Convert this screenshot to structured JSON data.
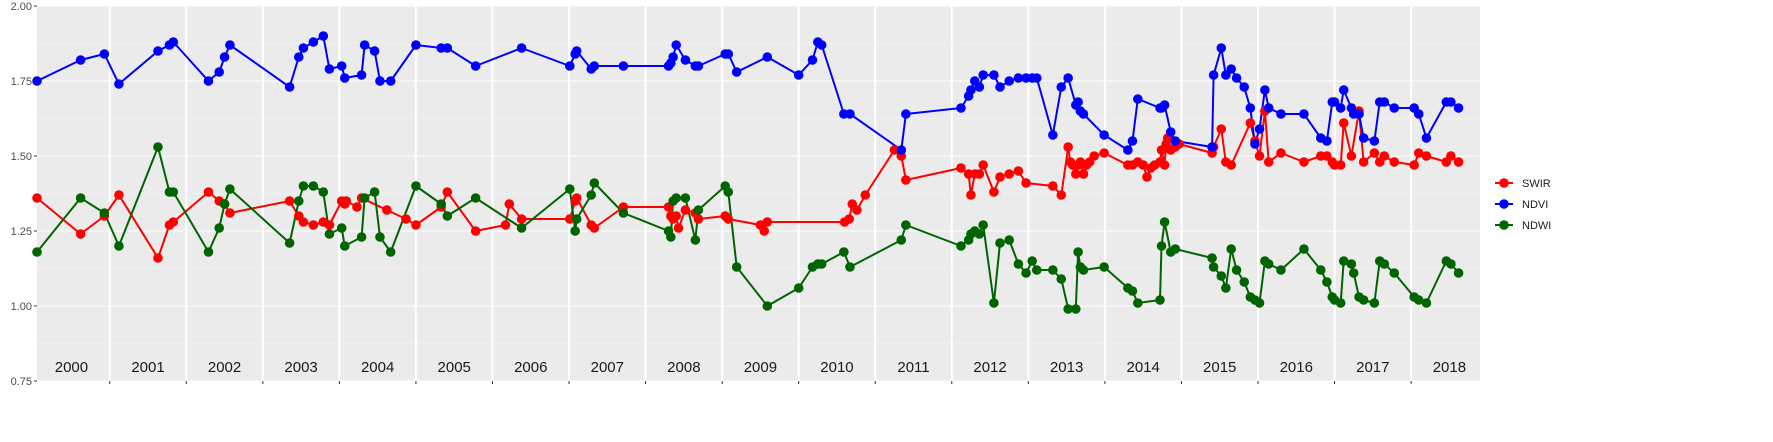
{
  "chart_data": {
    "type": "line",
    "title": "",
    "xlabel": "",
    "ylabel": "",
    "xlim": [
      2000.05,
      2018.9
    ],
    "ylim": [
      0.75,
      2.0
    ],
    "y_ticks": [
      "0.75",
      "1.00",
      "1.25",
      "1.50",
      "1.75",
      "2.00"
    ],
    "grid": true,
    "background": "#ebebeb",
    "legend_position": "right",
    "year_labels": [
      {
        "x": 2000.5,
        "label": "2000"
      },
      {
        "x": 2001.5,
        "label": "2001"
      },
      {
        "x": 2002.5,
        "label": "2002"
      },
      {
        "x": 2003.5,
        "label": "2003"
      },
      {
        "x": 2004.5,
        "label": "2004"
      },
      {
        "x": 2005.5,
        "label": "2005"
      },
      {
        "x": 2006.5,
        "label": "2006"
      },
      {
        "x": 2007.5,
        "label": "2007"
      },
      {
        "x": 2008.5,
        "label": "2008"
      },
      {
        "x": 2009.5,
        "label": "2009"
      },
      {
        "x": 2010.5,
        "label": "2010"
      },
      {
        "x": 2011.5,
        "label": "2011"
      },
      {
        "x": 2012.5,
        "label": "2012"
      },
      {
        "x": 2013.5,
        "label": "2013"
      },
      {
        "x": 2014.5,
        "label": "2014"
      },
      {
        "x": 2015.5,
        "label": "2015"
      },
      {
        "x": 2016.5,
        "label": "2016"
      },
      {
        "x": 2017.5,
        "label": "2017"
      },
      {
        "x": 2018.5,
        "label": "2018"
      }
    ],
    "series": [
      {
        "name": "SWIR",
        "color": "#ff0000",
        "x": [
          2000.05,
          2000.62,
          2000.93,
          2001.12,
          2001.63,
          2001.78,
          2001.83,
          2002.29,
          2002.43,
          2002.5,
          2002.57,
          2003.35,
          2003.47,
          2003.53,
          2003.66,
          2003.79,
          2003.87,
          2004.03,
          2004.07,
          2004.09,
          2004.23,
          2004.29,
          2004.62,
          2004.87,
          2005.0,
          2005.33,
          2005.41,
          2005.78,
          2006.17,
          2006.22,
          2006.38,
          2007.01,
          2007.08,
          2007.1,
          2007.29,
          2007.33,
          2007.71,
          2008.3,
          2008.33,
          2008.36,
          2008.4,
          2008.43,
          2008.52,
          2008.65,
          2008.69,
          2009.04,
          2009.08,
          2009.5,
          2009.55,
          2009.59,
          2010.6,
          2010.66,
          2010.7,
          2010.76,
          2010.87,
          2011.25,
          2011.34,
          2011.4,
          2012.12,
          2012.22,
          2012.25,
          2012.3,
          2012.36,
          2012.41,
          2012.55,
          2012.63,
          2012.75,
          2012.87,
          2012.97,
          2013.32,
          2013.43,
          2013.52,
          2013.55,
          2013.58,
          2013.62,
          2013.65,
          2013.68,
          2013.72,
          2013.76,
          2013.8,
          2013.86,
          2013.99,
          2014.3,
          2014.36,
          2014.43,
          2014.5,
          2014.55,
          2014.6,
          2014.65,
          2014.72,
          2014.74,
          2014.78,
          2014.8,
          2014.82,
          2014.86,
          2014.92,
          2014.97,
          2015.4,
          2015.42,
          2015.52,
          2015.58,
          2015.65,
          2015.9,
          2015.96,
          2016.02,
          2016.09,
          2016.14,
          2016.3,
          2016.6,
          2016.82,
          2016.9,
          2016.97,
          2017.0,
          2017.08,
          2017.12,
          2017.22,
          2017.32,
          2017.38,
          2017.52,
          2017.59,
          2017.65,
          2017.78,
          2018.04,
          2018.1,
          2018.2,
          2018.46,
          2018.52,
          2018.62
        ],
        "values": [
          1.36,
          1.24,
          1.3,
          1.37,
          1.16,
          1.27,
          1.28,
          1.38,
          1.35,
          1.34,
          1.31,
          1.35,
          1.3,
          1.28,
          1.27,
          1.28,
          1.27,
          1.35,
          1.34,
          1.35,
          1.33,
          1.36,
          1.32,
          1.29,
          1.27,
          1.33,
          1.38,
          1.25,
          1.27,
          1.34,
          1.29,
          1.29,
          1.35,
          1.36,
          1.27,
          1.26,
          1.33,
          1.33,
          1.3,
          1.29,
          1.3,
          1.26,
          1.32,
          1.31,
          1.29,
          1.3,
          1.29,
          1.27,
          1.25,
          1.28,
          1.28,
          1.29,
          1.34,
          1.32,
          1.37,
          1.52,
          1.5,
          1.42,
          1.46,
          1.44,
          1.37,
          1.44,
          1.44,
          1.47,
          1.38,
          1.43,
          1.44,
          1.45,
          1.41,
          1.4,
          1.37,
          1.53,
          1.48,
          1.47,
          1.44,
          1.47,
          1.48,
          1.44,
          1.47,
          1.48,
          1.5,
          1.51,
          1.47,
          1.47,
          1.48,
          1.47,
          1.43,
          1.46,
          1.47,
          1.48,
          1.52,
          1.47,
          1.54,
          1.56,
          1.52,
          1.53,
          1.54,
          1.51,
          1.53,
          1.59,
          1.48,
          1.47,
          1.61,
          1.55,
          1.5,
          1.65,
          1.48,
          1.51,
          1.48,
          1.5,
          1.5,
          1.48,
          1.47,
          1.47,
          1.61,
          1.5,
          1.65,
          1.48,
          1.51,
          1.48,
          1.5,
          1.48,
          1.47,
          1.51,
          1.5,
          1.48,
          1.5,
          1.48
        ]
      },
      {
        "name": "NDVI",
        "color": "#0000ff",
        "x": [
          2000.05,
          2000.62,
          2000.93,
          2001.12,
          2001.63,
          2001.78,
          2001.83,
          2002.29,
          2002.43,
          2002.5,
          2002.57,
          2003.35,
          2003.47,
          2003.53,
          2003.66,
          2003.79,
          2003.87,
          2004.03,
          2004.07,
          2004.29,
          2004.33,
          2004.46,
          2004.53,
          2004.67,
          2005.0,
          2005.33,
          2005.41,
          2005.78,
          2006.38,
          2007.01,
          2007.08,
          2007.1,
          2007.29,
          2007.33,
          2007.71,
          2008.3,
          2008.33,
          2008.36,
          2008.4,
          2008.52,
          2008.65,
          2008.69,
          2009.04,
          2009.08,
          2009.19,
          2009.59,
          2010.0,
          2010.18,
          2010.25,
          2010.3,
          2010.59,
          2010.67,
          2011.34,
          2011.4,
          2012.12,
          2012.22,
          2012.25,
          2012.3,
          2012.36,
          2012.41,
          2012.55,
          2012.63,
          2012.75,
          2012.87,
          2012.97,
          2013.05,
          2013.11,
          2013.32,
          2013.43,
          2013.52,
          2013.62,
          2013.65,
          2013.68,
          2013.72,
          2013.99,
          2014.3,
          2014.36,
          2014.43,
          2014.72,
          2014.74,
          2014.78,
          2014.86,
          2014.92,
          2015.4,
          2015.42,
          2015.52,
          2015.58,
          2015.65,
          2015.72,
          2015.82,
          2015.9,
          2015.96,
          2016.02,
          2016.09,
          2016.14,
          2016.3,
          2016.6,
          2016.82,
          2016.9,
          2016.97,
          2017.0,
          2017.08,
          2017.12,
          2017.22,
          2017.25,
          2017.32,
          2017.38,
          2017.52,
          2017.59,
          2017.65,
          2017.78,
          2018.04,
          2018.1,
          2018.2,
          2018.46,
          2018.52,
          2018.62
        ],
        "values": [
          1.75,
          1.82,
          1.84,
          1.74,
          1.85,
          1.87,
          1.88,
          1.75,
          1.78,
          1.83,
          1.87,
          1.73,
          1.83,
          1.86,
          1.88,
          1.9,
          1.79,
          1.8,
          1.76,
          1.77,
          1.87,
          1.85,
          1.75,
          1.75,
          1.87,
          1.86,
          1.86,
          1.8,
          1.86,
          1.8,
          1.84,
          1.85,
          1.79,
          1.8,
          1.8,
          1.8,
          1.81,
          1.83,
          1.87,
          1.82,
          1.8,
          1.8,
          1.84,
          1.84,
          1.78,
          1.83,
          1.77,
          1.82,
          1.88,
          1.87,
          1.64,
          1.64,
          1.52,
          1.64,
          1.66,
          1.7,
          1.72,
          1.75,
          1.73,
          1.77,
          1.77,
          1.73,
          1.75,
          1.76,
          1.76,
          1.76,
          1.76,
          1.57,
          1.73,
          1.76,
          1.67,
          1.68,
          1.65,
          1.64,
          1.57,
          1.52,
          1.55,
          1.69,
          1.66,
          1.66,
          1.67,
          1.58,
          1.55,
          1.53,
          1.77,
          1.86,
          1.77,
          1.79,
          1.76,
          1.73,
          1.66,
          1.54,
          1.59,
          1.72,
          1.66,
          1.64,
          1.64,
          1.56,
          1.55,
          1.68,
          1.68,
          1.66,
          1.72,
          1.66,
          1.64,
          1.64,
          1.56,
          1.55,
          1.68,
          1.68,
          1.66,
          1.66,
          1.64,
          1.56,
          1.68,
          1.68,
          1.66
        ]
      },
      {
        "name": "NDWI",
        "color": "#006400",
        "x": [
          2000.05,
          2000.62,
          2000.93,
          2001.12,
          2001.63,
          2001.78,
          2001.83,
          2002.29,
          2002.43,
          2002.5,
          2002.57,
          2003.35,
          2003.47,
          2003.53,
          2003.66,
          2003.79,
          2003.87,
          2004.03,
          2004.07,
          2004.29,
          2004.33,
          2004.46,
          2004.53,
          2004.67,
          2005.0,
          2005.33,
          2005.41,
          2005.78,
          2006.38,
          2007.01,
          2007.08,
          2007.1,
          2007.29,
          2007.33,
          2007.71,
          2008.3,
          2008.33,
          2008.36,
          2008.4,
          2008.52,
          2008.65,
          2008.69,
          2009.04,
          2009.08,
          2009.19,
          2009.59,
          2010.0,
          2010.18,
          2010.25,
          2010.3,
          2010.59,
          2010.67,
          2011.34,
          2011.4,
          2012.12,
          2012.22,
          2012.25,
          2012.3,
          2012.36,
          2012.41,
          2012.55,
          2012.63,
          2012.75,
          2012.87,
          2012.97,
          2013.05,
          2013.11,
          2013.32,
          2013.43,
          2013.52,
          2013.62,
          2013.65,
          2013.68,
          2013.72,
          2013.99,
          2014.3,
          2014.36,
          2014.43,
          2014.72,
          2014.74,
          2014.78,
          2014.86,
          2014.92,
          2015.4,
          2015.42,
          2015.52,
          2015.58,
          2015.65,
          2015.72,
          2015.82,
          2015.9,
          2015.96,
          2016.02,
          2016.09,
          2016.14,
          2016.3,
          2016.6,
          2016.82,
          2016.9,
          2016.97,
          2017.0,
          2017.08,
          2017.12,
          2017.22,
          2017.25,
          2017.32,
          2017.38,
          2017.52,
          2017.59,
          2017.65,
          2017.78,
          2018.04,
          2018.1,
          2018.2,
          2018.46,
          2018.52,
          2018.62
        ],
        "values": [
          1.18,
          1.36,
          1.31,
          1.2,
          1.53,
          1.38,
          1.38,
          1.18,
          1.26,
          1.34,
          1.39,
          1.21,
          1.35,
          1.4,
          1.4,
          1.38,
          1.24,
          1.26,
          1.2,
          1.23,
          1.36,
          1.38,
          1.23,
          1.18,
          1.4,
          1.34,
          1.3,
          1.36,
          1.26,
          1.39,
          1.25,
          1.29,
          1.37,
          1.41,
          1.31,
          1.25,
          1.23,
          1.35,
          1.36,
          1.36,
          1.22,
          1.32,
          1.4,
          1.38,
          1.13,
          1.0,
          1.06,
          1.13,
          1.14,
          1.14,
          1.18,
          1.13,
          1.22,
          1.27,
          1.2,
          1.22,
          1.24,
          1.25,
          1.24,
          1.27,
          1.01,
          1.21,
          1.22,
          1.14,
          1.11,
          1.15,
          1.12,
          1.12,
          1.09,
          0.99,
          0.99,
          1.18,
          1.13,
          1.12,
          1.13,
          1.06,
          1.05,
          1.01,
          1.02,
          1.2,
          1.28,
          1.18,
          1.19,
          1.16,
          1.13,
          1.1,
          1.06,
          1.19,
          1.12,
          1.08,
          1.03,
          1.02,
          1.01,
          1.15,
          1.14,
          1.12,
          1.19,
          1.12,
          1.08,
          1.03,
          1.02,
          1.01,
          1.15,
          1.14,
          1.11,
          1.03,
          1.02,
          1.01,
          1.15,
          1.14,
          1.11,
          1.03,
          1.02,
          1.01,
          1.15,
          1.14,
          1.11
        ]
      }
    ]
  }
}
